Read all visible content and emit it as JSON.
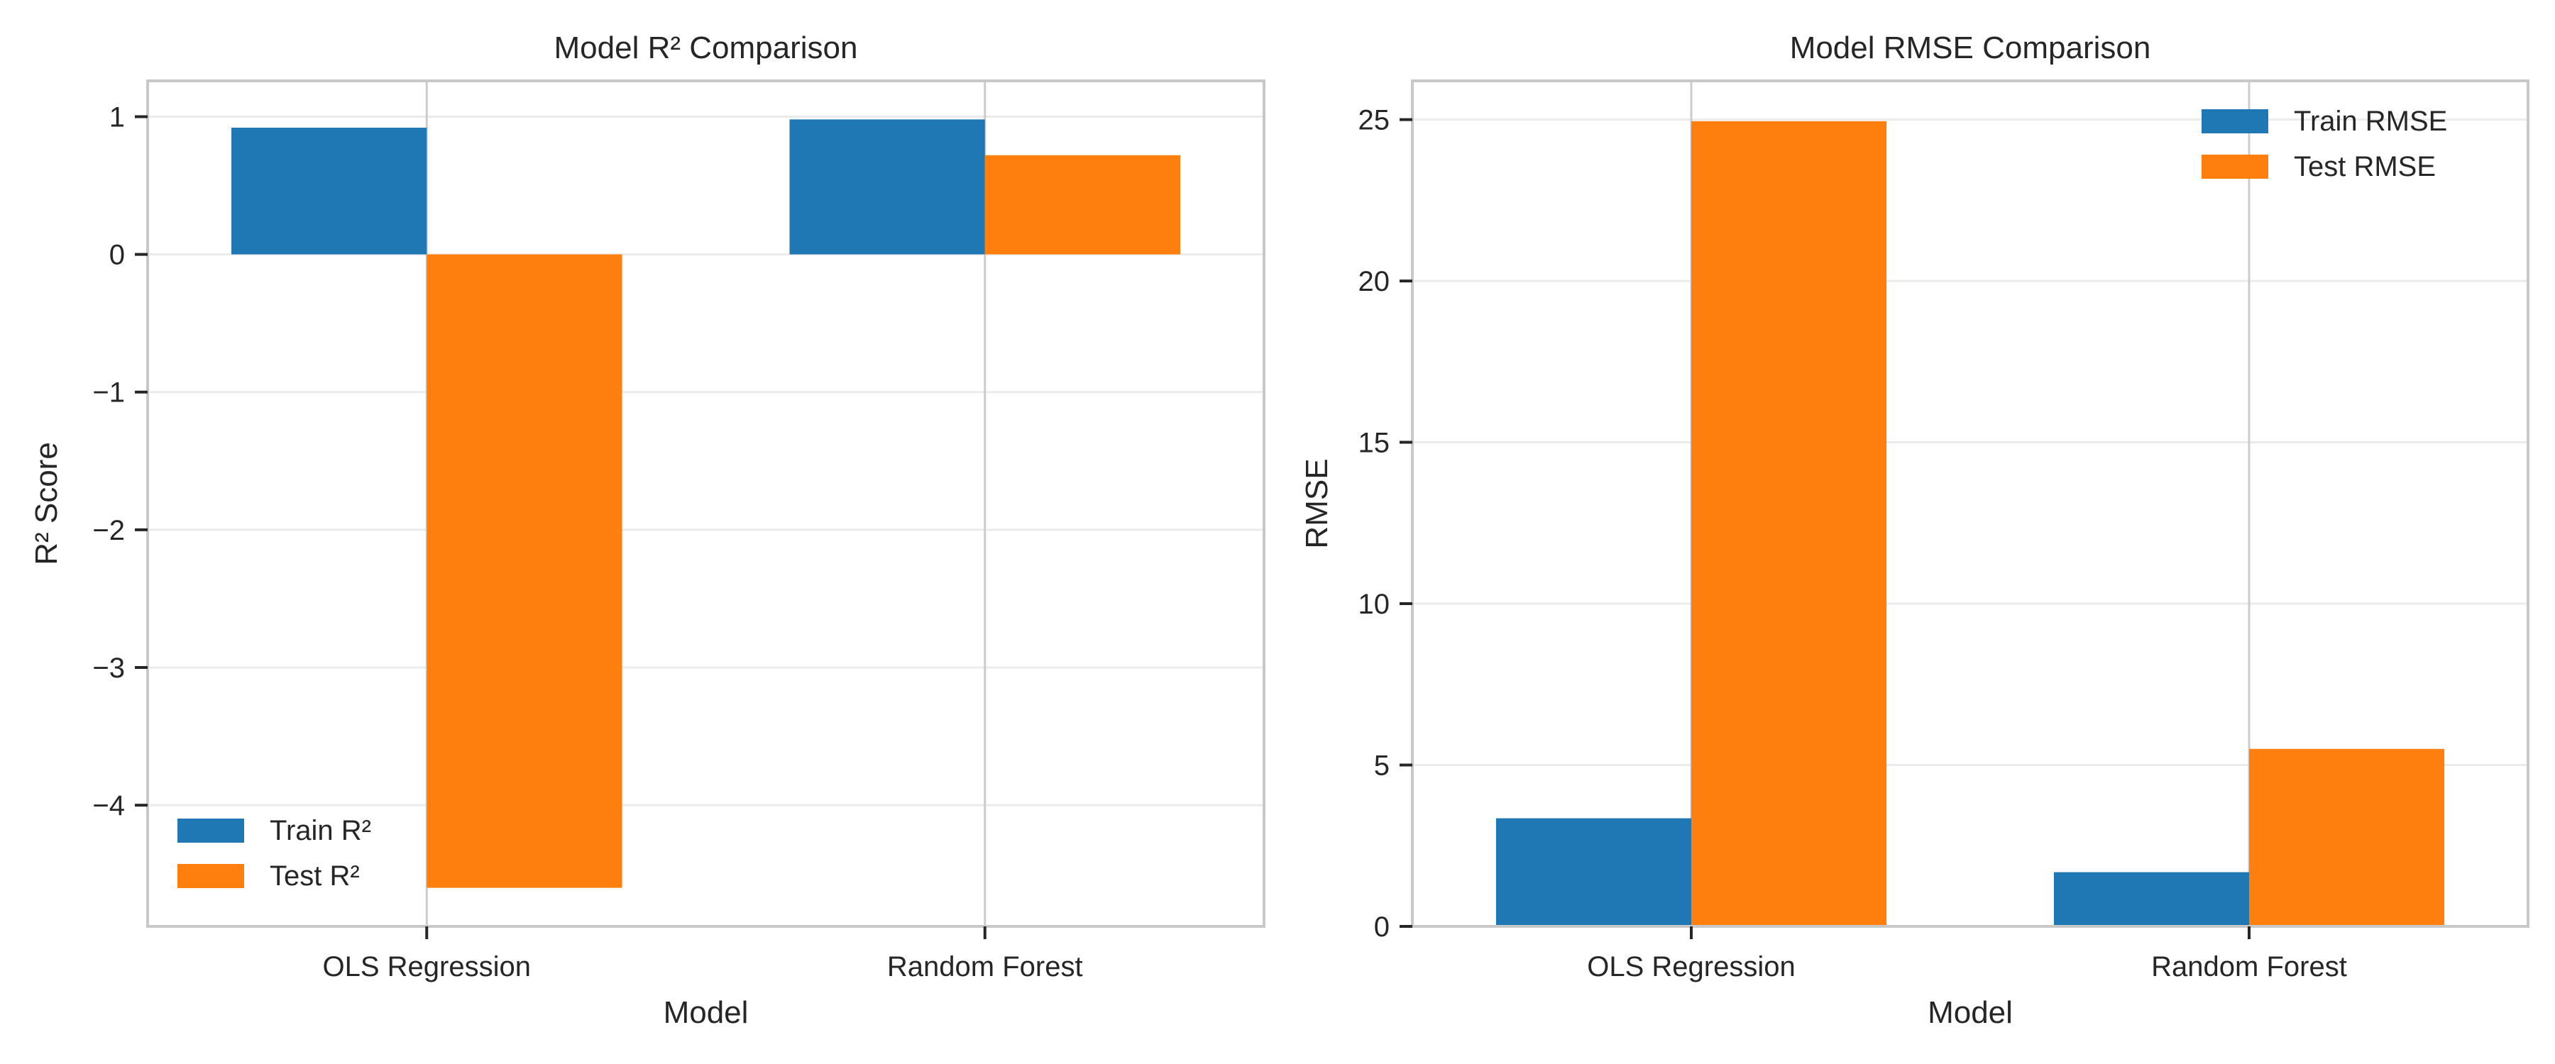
{
  "chart_data": [
    {
      "type": "bar",
      "title": "Model R² Comparison",
      "xlabel": "Model",
      "ylabel": "R² Score",
      "categories": [
        "OLS Regression",
        "Random Forest"
      ],
      "series": [
        {
          "name": "Train R²",
          "values": [
            0.92,
            0.98
          ],
          "color": "#1f77b4"
        },
        {
          "name": "Test R²",
          "values": [
            -4.6,
            0.72
          ],
          "color": "#ff7f0e"
        }
      ],
      "ylim": [
        -4.88,
        1.26
      ],
      "yticks": [
        -4,
        -3,
        -2,
        -1,
        0,
        1
      ],
      "ytick_labels": [
        "−4",
        "−3",
        "−2",
        "−1",
        "0",
        "1"
      ],
      "grid": true,
      "legend": "lower-left"
    },
    {
      "type": "bar",
      "title": "Model RMSE Comparison",
      "xlabel": "Model",
      "ylabel": "RMSE",
      "categories": [
        "OLS Regression",
        "Random Forest"
      ],
      "series": [
        {
          "name": "Train RMSE",
          "values": [
            3.35,
            1.68
          ],
          "color": "#1f77b4"
        },
        {
          "name": "Test RMSE",
          "values": [
            24.95,
            5.5
          ],
          "color": "#ff7f0e"
        }
      ],
      "ylim": [
        0,
        26.2
      ],
      "yticks": [
        0,
        5,
        10,
        15,
        20,
        25
      ],
      "ytick_labels": [
        "0",
        "5",
        "10",
        "15",
        "20",
        "25"
      ],
      "grid": true,
      "legend": "upper-right"
    }
  ]
}
